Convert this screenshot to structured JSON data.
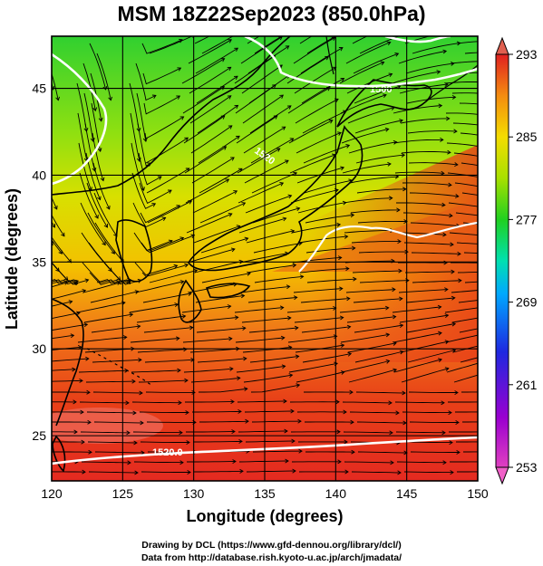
{
  "title": "MSM 18Z22Sep2023 (850.0hPa)",
  "x_axis": {
    "label": "Longitude (degrees)",
    "range": [
      120,
      150
    ],
    "ticks": [
      "120",
      "125",
      "130",
      "135",
      "140",
      "145",
      "150"
    ]
  },
  "y_axis": {
    "label": "Latitude  (degrees)",
    "range": [
      22.4,
      48
    ],
    "ticks": [
      "25",
      "30",
      "35",
      "40",
      "45"
    ]
  },
  "colorbar": {
    "range": [
      253,
      293
    ],
    "ticks": [
      "293",
      "285",
      "277",
      "269",
      "261",
      "253"
    ],
    "colors": [
      "#e040b0",
      "#a000d0",
      "#2020e0",
      "#00a0ff",
      "#00e0b0",
      "#20d020",
      "#a0e000",
      "#f0e000",
      "#f8a000",
      "#f05010",
      "#e02020"
    ]
  },
  "contour_labels": [
    "1500",
    "1520",
    "1520.0"
  ],
  "credits": {
    "line1": "Drawing by DCL (https://www.gfd-dennou.org/library/dcl/)",
    "line2": "Data from http://database.rish.kyoto-u.ac.jp/arch/jmadata/"
  }
}
